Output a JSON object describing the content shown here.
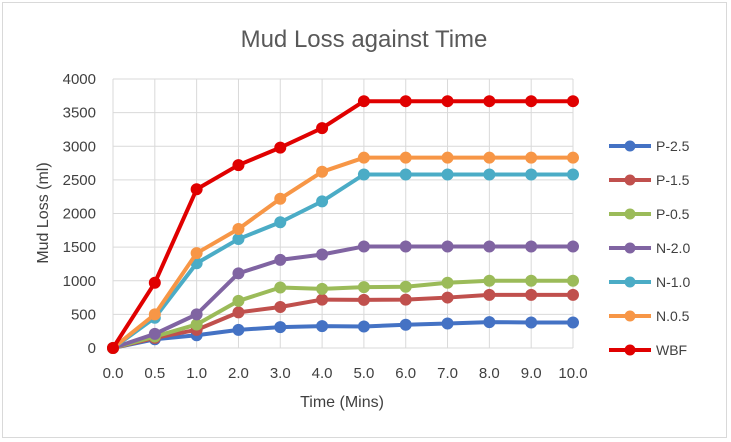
{
  "chart_data": {
    "type": "line",
    "title": "Mud  Loss against Time",
    "xlabel": "Time (Mins)",
    "ylabel": "Mud Loss (ml)",
    "categories": [
      "0.0",
      "0.5",
      "1.0",
      "2.0",
      "3.0",
      "4.0",
      "5.0",
      "6.0",
      "7.0",
      "8.0",
      "9.0",
      "10.0"
    ],
    "ylim": [
      0,
      4000
    ],
    "yticks": [
      0,
      500,
      1000,
      1500,
      2000,
      2500,
      3000,
      3500,
      4000
    ],
    "grid": true,
    "legend_position": "right",
    "series": [
      {
        "name": "P-2.5",
        "color": "#4472c4",
        "values": [
          0,
          130,
          190,
          270,
          310,
          325,
          320,
          345,
          365,
          385,
          380,
          380
        ]
      },
      {
        "name": "P-1.5",
        "color": "#c0504d",
        "values": [
          0,
          150,
          270,
          530,
          610,
          720,
          715,
          720,
          750,
          790,
          790,
          790
        ]
      },
      {
        "name": "P-0.5",
        "color": "#9bbb59",
        "values": [
          0,
          170,
          350,
          700,
          900,
          880,
          905,
          910,
          970,
          1000,
          1000,
          1000
        ]
      },
      {
        "name": "N-2.0",
        "color": "#8064a2",
        "values": [
          0,
          210,
          500,
          1110,
          1310,
          1390,
          1510,
          1510,
          1510,
          1510,
          1510,
          1510
        ]
      },
      {
        "name": "N-1.0",
        "color": "#4bacc6",
        "values": [
          0,
          450,
          1260,
          1620,
          1870,
          2180,
          2580,
          2580,
          2580,
          2580,
          2580,
          2580
        ]
      },
      {
        "name": "N.0.5",
        "color": "#f79646",
        "values": [
          0,
          500,
          1410,
          1770,
          2220,
          2620,
          2830,
          2830,
          2830,
          2830,
          2830,
          2830
        ]
      },
      {
        "name": "WBF",
        "color": "#e00000",
        "values": [
          0,
          970,
          2360,
          2720,
          2980,
          3270,
          3670,
          3670,
          3670,
          3670,
          3670,
          3670
        ]
      }
    ]
  }
}
